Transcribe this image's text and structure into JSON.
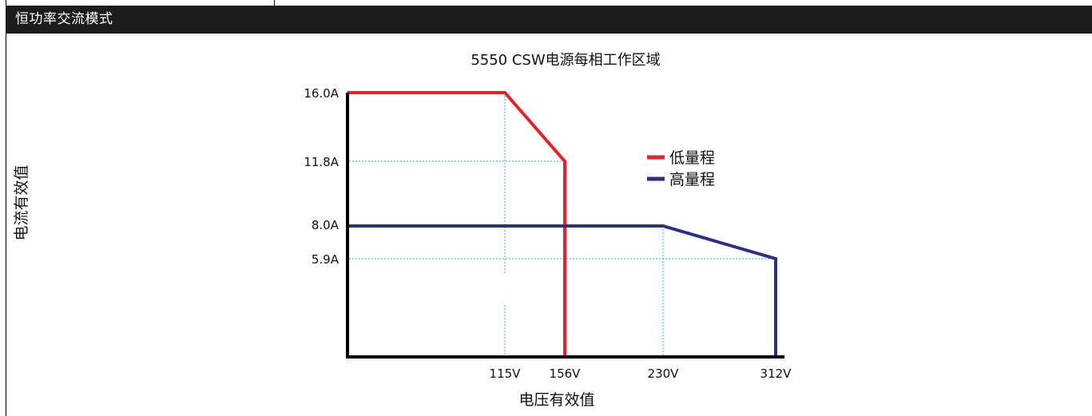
{
  "header": {
    "title": "恒功率交流模式"
  },
  "chart_data": {
    "type": "line",
    "title": "5550 CSW电源每相工作区域",
    "xlabel": "电压有效值",
    "ylabel": "电流有效值",
    "x_ticks": [
      "115V",
      "156V",
      "230V",
      "312V"
    ],
    "y_ticks": [
      "16.0A",
      "11.8A",
      "8.0A",
      "5.9A"
    ],
    "legend_position": "top-right",
    "series": [
      {
        "name": "低量程",
        "color": "#e8202a",
        "points": [
          [
            0,
            16.0
          ],
          [
            115,
            16.0
          ],
          [
            156,
            11.8
          ],
          [
            156,
            0
          ]
        ]
      },
      {
        "name": "高量程",
        "color": "#2b2f86",
        "points": [
          [
            0,
            8.0
          ],
          [
            230,
            8.0
          ],
          [
            312,
            5.9
          ],
          [
            312,
            0
          ]
        ]
      }
    ],
    "guide_color": "#29a8d8"
  }
}
